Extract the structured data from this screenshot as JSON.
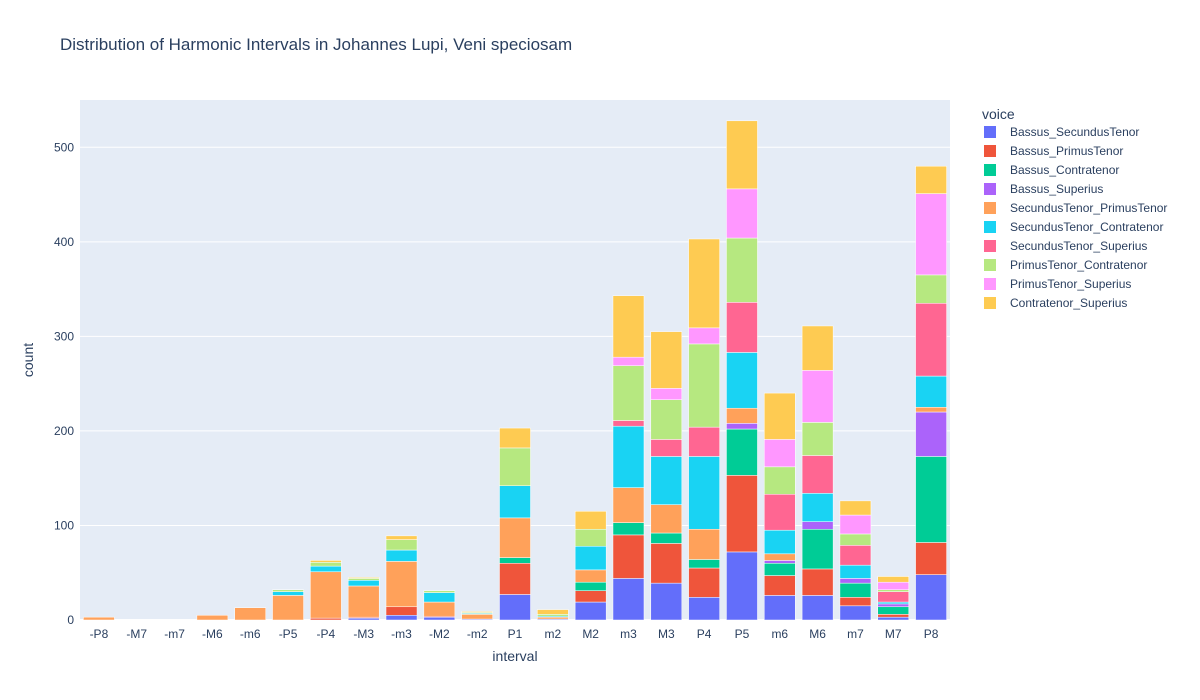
{
  "chart_data": {
    "type": "bar",
    "barmode": "stack",
    "title": "Distribution of Harmonic Intervals in Johannes Lupi, Veni speciosam",
    "xlabel": "interval",
    "ylabel": "count",
    "ylim": [
      0,
      550
    ],
    "yticks": [
      0,
      100,
      200,
      300,
      400,
      500
    ],
    "grid": true,
    "legend_title": "voice",
    "legend_position": "right",
    "categories": [
      "-P8",
      "-M7",
      "-m7",
      "-M6",
      "-m6",
      "-P5",
      "-P4",
      "-M3",
      "-m3",
      "-M2",
      "-m2",
      "P1",
      "m2",
      "M2",
      "m3",
      "M3",
      "P4",
      "P5",
      "m6",
      "M6",
      "m7",
      "M7",
      "P8"
    ],
    "series": [
      {
        "name": "Bassus_SecundusTenor",
        "color": "#636efa",
        "values": [
          0,
          0,
          0,
          0,
          0,
          0,
          0,
          2,
          5,
          3,
          1,
          27,
          1,
          19,
          44,
          39,
          24,
          72,
          26,
          26,
          15,
          3,
          48
        ]
      },
      {
        "name": "Bassus_PrimusTenor",
        "color": "#ef553b",
        "values": [
          0,
          0,
          0,
          0,
          0,
          0,
          2,
          1,
          9,
          1,
          0,
          33,
          0,
          12,
          46,
          42,
          31,
          81,
          21,
          28,
          9,
          3,
          34
        ]
      },
      {
        "name": "Bassus_Contratenor",
        "color": "#00cc96",
        "values": [
          0,
          0,
          0,
          0,
          0,
          0,
          0,
          0,
          0,
          0,
          0,
          6,
          0,
          9,
          13,
          11,
          9,
          49,
          13,
          42,
          15,
          8,
          91
        ]
      },
      {
        "name": "Bassus_Superius",
        "color": "#ab63fa",
        "values": [
          0,
          0,
          0,
          0,
          0,
          0,
          0,
          0,
          0,
          0,
          0,
          0,
          0,
          0,
          0,
          0,
          0,
          6,
          3,
          8,
          5,
          3,
          47
        ]
      },
      {
        "name": "SecundusTenor_PrimusTenor",
        "color": "#ffa15a",
        "values": [
          3,
          0,
          0,
          5,
          13,
          26,
          49,
          33,
          48,
          15,
          5,
          42,
          2,
          13,
          37,
          30,
          32,
          16,
          7,
          0,
          0,
          0,
          5
        ]
      },
      {
        "name": "SecundusTenor_Contratenor",
        "color": "#19d3f3",
        "values": [
          0,
          0,
          0,
          0,
          0,
          4,
          6,
          6,
          12,
          10,
          1,
          34,
          1,
          25,
          65,
          51,
          77,
          59,
          25,
          30,
          14,
          2,
          33
        ]
      },
      {
        "name": "SecundusTenor_Superius",
        "color": "#ff6692",
        "values": [
          0,
          0,
          0,
          0,
          0,
          0,
          0,
          0,
          0,
          0,
          0,
          0,
          0,
          0,
          6,
          18,
          31,
          53,
          38,
          40,
          21,
          11,
          77
        ]
      },
      {
        "name": "PrimusTenor_Contratenor",
        "color": "#b6e880",
        "values": [
          0,
          0,
          0,
          0,
          0,
          2,
          4,
          2,
          11,
          2,
          1,
          40,
          2,
          18,
          58,
          42,
          88,
          68,
          29,
          35,
          12,
          2,
          30
        ]
      },
      {
        "name": "PrimusTenor_Superius",
        "color": "#ff97ff",
        "values": [
          0,
          0,
          0,
          0,
          0,
          0,
          0,
          0,
          0,
          0,
          0,
          0,
          0,
          0,
          9,
          12,
          17,
          52,
          29,
          55,
          20,
          8,
          86
        ]
      },
      {
        "name": "Contratenor_Superius",
        "color": "#fecb52",
        "values": [
          0,
          0,
          0,
          0,
          0,
          0,
          2,
          1,
          4,
          0,
          1,
          21,
          5,
          19,
          65,
          60,
          94,
          72,
          49,
          47,
          15,
          6,
          29
        ]
      }
    ]
  }
}
